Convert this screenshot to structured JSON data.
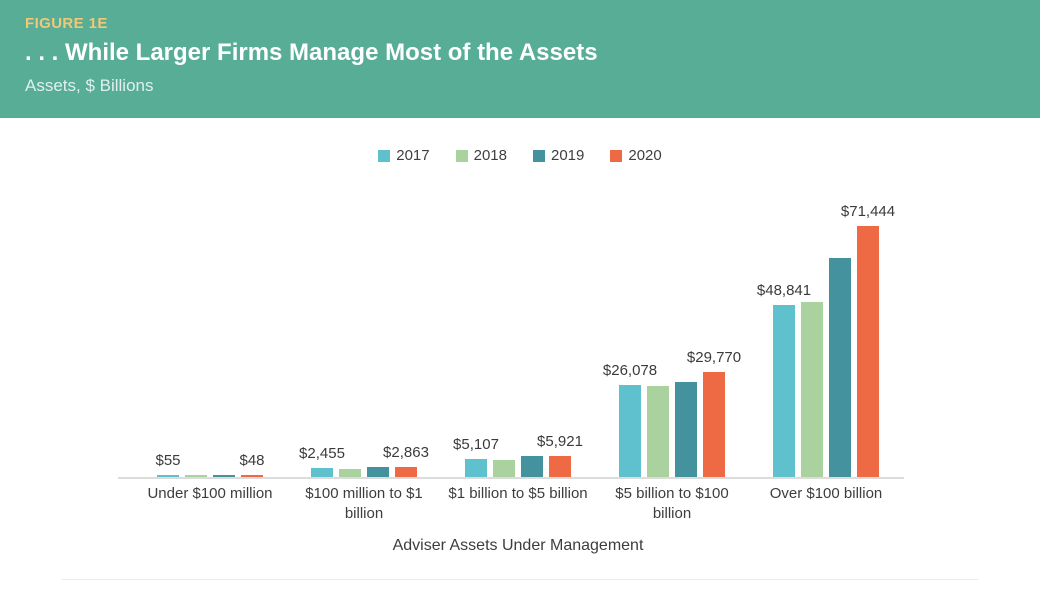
{
  "header": {
    "figure_label": "FIGURE 1E",
    "title": ". . . While Larger Firms Manage Most of the Assets",
    "subtitle": "Assets, $ Billions",
    "background_color": "#57ad96",
    "figure_label_color": "#efc878"
  },
  "chart_data": {
    "type": "bar",
    "title": ". . . While Larger Firms Manage Most of the Assets",
    "subtitle": "Assets, $ Billions",
    "xlabel": "Adviser Assets Under Management",
    "ylabel": "Assets, $ Billions",
    "ylim": [
      0,
      75000
    ],
    "grid": false,
    "legend_position": "top-center",
    "axis_line_color": "#dcdcdc",
    "categories": [
      "Under $100 million",
      "$100 million to $1 billion",
      "$1 billion to $5 billion",
      "$5 billion to $100 billion",
      "Over $100 billion"
    ],
    "series": [
      {
        "name": "2017",
        "color": "#5fc0ce",
        "values": [
          55,
          2455,
          5107,
          26078,
          48841
        ],
        "labels": [
          "$55",
          "$2,455",
          "$5,107",
          "$26,078",
          "$48,841"
        ]
      },
      {
        "name": "2018",
        "color": "#a9d29f",
        "values": [
          52,
          2400,
          4950,
          25900,
          49900
        ]
      },
      {
        "name": "2019",
        "color": "#43929e",
        "values": [
          50,
          2800,
          5900,
          27100,
          62400
        ]
      },
      {
        "name": "2020",
        "color": "#ed6a45",
        "values": [
          48,
          2863,
          5921,
          29770,
          71444
        ],
        "labels": [
          "$48",
          "$2,863",
          "$5,921",
          "$29,770",
          "$71,444"
        ]
      }
    ]
  }
}
